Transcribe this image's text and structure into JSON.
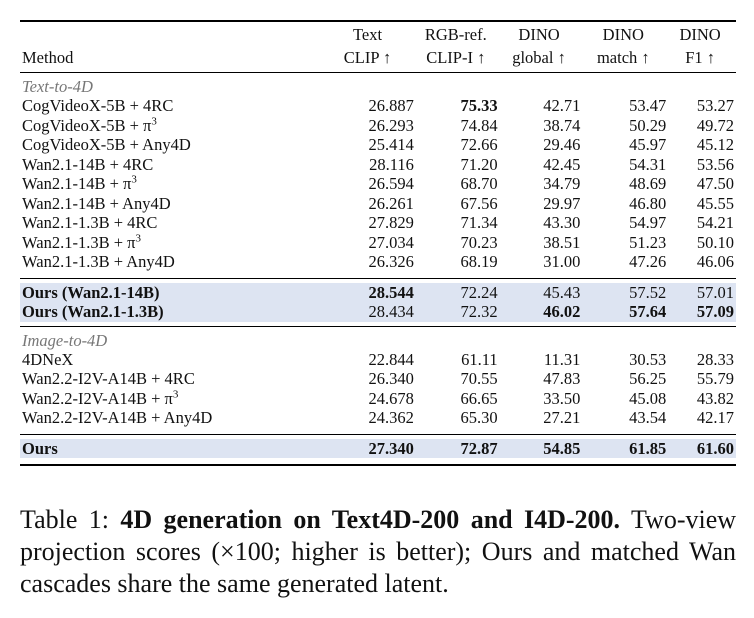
{
  "table": {
    "header": {
      "method": "Method",
      "col1": [
        "Text",
        "CLIP ↑"
      ],
      "col2": [
        "RGB-ref.",
        "CLIP-I ↑"
      ],
      "col3": [
        "DINO",
        "global ↑"
      ],
      "col4": [
        "DINO",
        "match ↑"
      ],
      "col5": [
        "DINO",
        "F1 ↑"
      ]
    },
    "sections": [
      {
        "title": "Text-to-4D",
        "rows": [
          {
            "method": "CogVideoX-5B + 4RC",
            "v": [
              "26.887",
              "75.33",
              "42.71",
              "53.47",
              "53.27"
            ],
            "bold": [
              false,
              true,
              false,
              false,
              false
            ]
          },
          {
            "method": "CogVideoX-5B + π",
            "sup": "3",
            "v": [
              "26.293",
              "74.84",
              "38.74",
              "50.29",
              "49.72"
            ],
            "bold": [
              false,
              false,
              false,
              false,
              false
            ]
          },
          {
            "method": "CogVideoX-5B + Any4D",
            "v": [
              "25.414",
              "72.66",
              "29.46",
              "45.97",
              "45.12"
            ],
            "bold": [
              false,
              false,
              false,
              false,
              false
            ]
          },
          {
            "method": "Wan2.1-14B + 4RC",
            "v": [
              "28.116",
              "71.20",
              "42.45",
              "54.31",
              "53.56"
            ],
            "bold": [
              false,
              false,
              false,
              false,
              false
            ]
          },
          {
            "method": "Wan2.1-14B + π",
            "sup": "3",
            "v": [
              "26.594",
              "68.70",
              "34.79",
              "48.69",
              "47.50"
            ],
            "bold": [
              false,
              false,
              false,
              false,
              false
            ]
          },
          {
            "method": "Wan2.1-14B + Any4D",
            "v": [
              "26.261",
              "67.56",
              "29.97",
              "46.80",
              "45.55"
            ],
            "bold": [
              false,
              false,
              false,
              false,
              false
            ]
          },
          {
            "method": "Wan2.1-1.3B + 4RC",
            "v": [
              "27.829",
              "71.34",
              "43.30",
              "54.97",
              "54.21"
            ],
            "bold": [
              false,
              false,
              false,
              false,
              false
            ]
          },
          {
            "method": "Wan2.1-1.3B + π",
            "sup": "3",
            "v": [
              "27.034",
              "70.23",
              "38.51",
              "51.23",
              "50.10"
            ],
            "bold": [
              false,
              false,
              false,
              false,
              false
            ]
          },
          {
            "method": "Wan2.1-1.3B + Any4D",
            "v": [
              "26.326",
              "68.19",
              "31.00",
              "47.26",
              "46.06"
            ],
            "bold": [
              false,
              false,
              false,
              false,
              false
            ]
          }
        ],
        "ours": [
          {
            "method": "Ours (Wan2.1-14B)",
            "v": [
              "28.544",
              "72.24",
              "45.43",
              "57.52",
              "57.01"
            ],
            "bold": [
              true,
              false,
              false,
              false,
              false
            ]
          },
          {
            "method": "Ours (Wan2.1-1.3B)",
            "v": [
              "28.434",
              "72.32",
              "46.02",
              "57.64",
              "57.09"
            ],
            "bold": [
              false,
              false,
              true,
              true,
              true
            ]
          }
        ]
      },
      {
        "title": "Image-to-4D",
        "rows": [
          {
            "method": "4DNeX",
            "v": [
              "22.844",
              "61.11",
              "11.31",
              "30.53",
              "28.33"
            ],
            "bold": [
              false,
              false,
              false,
              false,
              false
            ]
          },
          {
            "method": "Wan2.2-I2V-A14B + 4RC",
            "v": [
              "26.340",
              "70.55",
              "47.83",
              "56.25",
              "55.79"
            ],
            "bold": [
              false,
              false,
              false,
              false,
              false
            ]
          },
          {
            "method": "Wan2.2-I2V-A14B + π",
            "sup": "3",
            "v": [
              "24.678",
              "66.65",
              "33.50",
              "45.08",
              "43.82"
            ],
            "bold": [
              false,
              false,
              false,
              false,
              false
            ]
          },
          {
            "method": "Wan2.2-I2V-A14B + Any4D",
            "v": [
              "24.362",
              "65.30",
              "27.21",
              "43.54",
              "42.17"
            ],
            "bold": [
              false,
              false,
              false,
              false,
              false
            ]
          }
        ],
        "ours": [
          {
            "method": "Ours",
            "v": [
              "27.340",
              "72.87",
              "54.85",
              "61.85",
              "61.60"
            ],
            "bold": [
              true,
              true,
              true,
              true,
              true
            ]
          }
        ]
      }
    ]
  },
  "caption": {
    "label": "Table 1: ",
    "title": "4D generation on Text4D-200 and I4D-200.",
    "body": " Two-view projection scores (×100; higher is better); Ours and matched Wan cascades share the same generated latent."
  }
}
